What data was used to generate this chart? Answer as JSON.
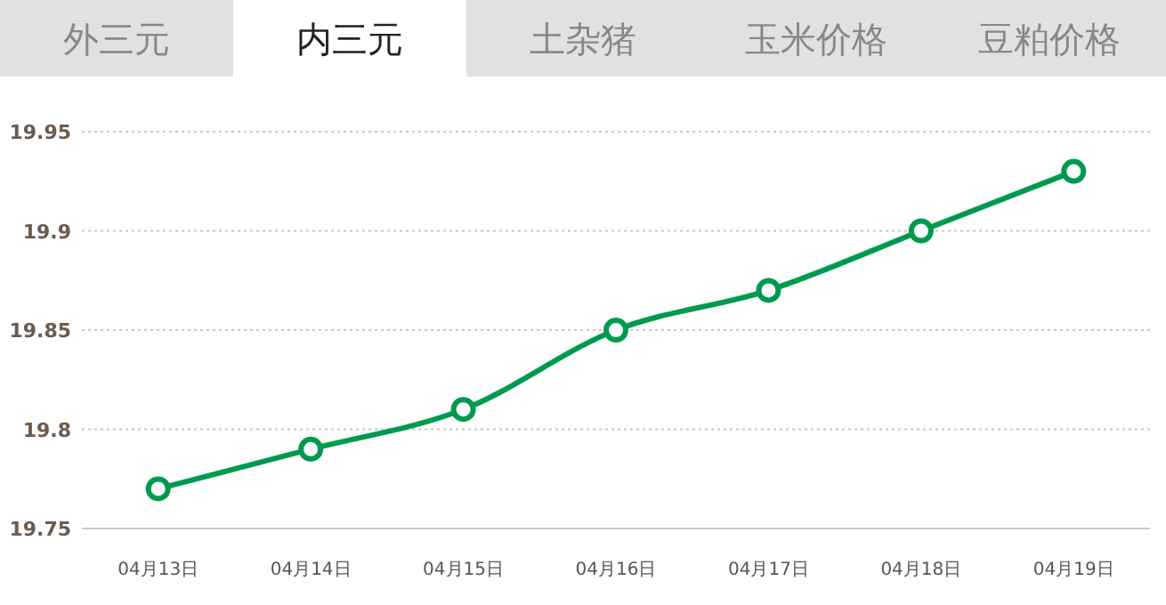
{
  "chart_data": {
    "type": "line",
    "title": "内三元",
    "annotations": [
      "外三元",
      "土杂猪",
      "玉米价格",
      "豆粕价格"
    ],
    "categories": [
      "04月13日",
      "04月14日",
      "04月15日",
      "04月16日",
      "04月17日",
      "04月18日",
      "04月19日"
    ],
    "series": [
      {
        "color": "#009a4e",
        "values": [
          19.77,
          19.79,
          19.81,
          19.85,
          19.87,
          19.9,
          19.93
        ]
      }
    ],
    "ylim": [
      19.75,
      19.95
    ],
    "yticks": [
      19.75,
      19.8,
      19.85,
      19.9,
      19.95
    ],
    "grid": "y",
    "marker": "circle",
    "line_style": "solid"
  }
}
